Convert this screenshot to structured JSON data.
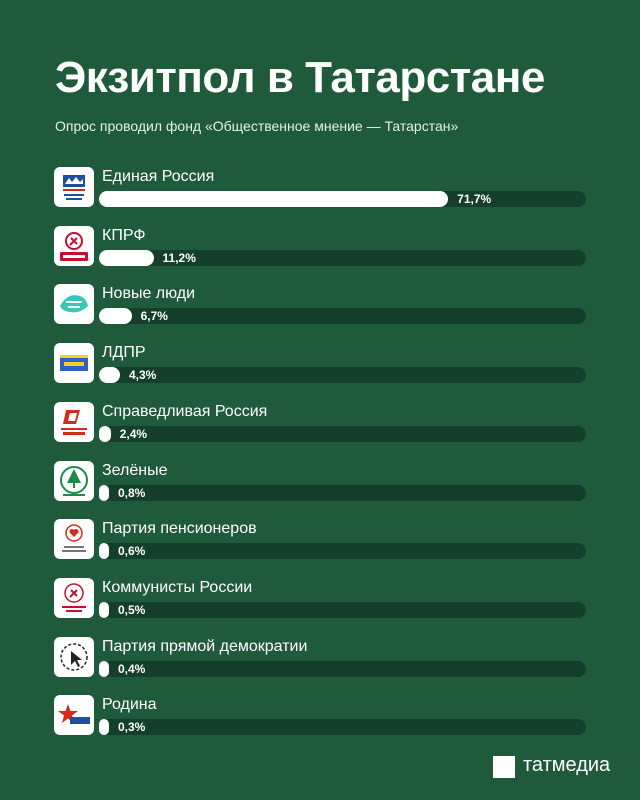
{
  "header": {
    "title": "Экзитпол в Татарстане",
    "subtitle": "Опрос проводил фонд «Общественное мнение — Татарстан»"
  },
  "chart_data": {
    "type": "bar",
    "orientation": "horizontal",
    "title": "Экзитпол в Татарстане",
    "subtitle": "Опрос проводил фонд «Общественное мнение — Татарстан»",
    "categories": [
      "Единая Россия",
      "КПРФ",
      "Новые люди",
      "ЛДПР",
      "Справедливая Россия",
      "Зелёные",
      "Партия пенсионеров",
      "Коммунисты России",
      "Партия прямой демократии",
      "Родина"
    ],
    "values": [
      71.7,
      11.2,
      6.7,
      4.3,
      2.4,
      0.8,
      0.6,
      0.5,
      0.4,
      0.3
    ],
    "value_labels": [
      "71,7%",
      "11,2%",
      "6,7%",
      "4,3%",
      "2,4%",
      "0,8%",
      "0,6%",
      "0,5%",
      "0,4%",
      "0,3%"
    ],
    "xlim": [
      0,
      100
    ],
    "logo_icons": [
      "united-russia-logo-icon",
      "kprf-logo-icon",
      "new-people-logo-icon",
      "ldpr-logo-icon",
      "fair-russia-logo-icon",
      "greens-logo-icon",
      "pensioners-party-logo-icon",
      "communists-of-russia-logo-icon",
      "direct-democracy-logo-icon",
      "rodina-logo-icon"
    ],
    "colors": {
      "background": "#1f5a3b",
      "bar_fill": "#ffffff",
      "bar_track": "#143f2a"
    }
  },
  "footer": {
    "brand": "татмедиа"
  }
}
